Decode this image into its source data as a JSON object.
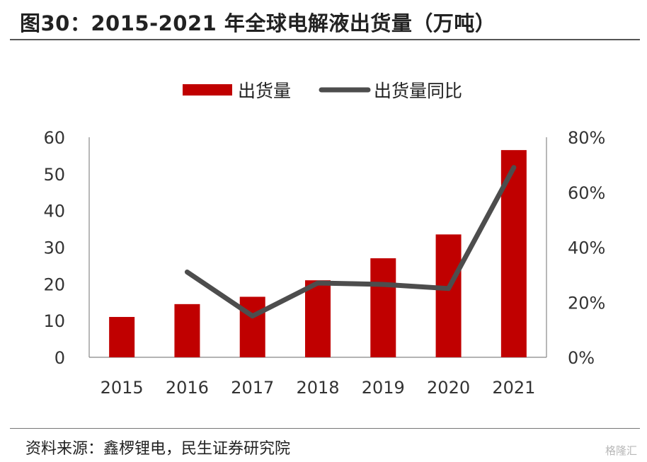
{
  "title": "图30：2015-2021 年全球电解液出货量（万吨）",
  "source": "资料来源：鑫椤锂电，民生证券研究院",
  "watermark": "格隆汇",
  "chart_data": {
    "type": "bar",
    "categories": [
      "2015",
      "2016",
      "2017",
      "2018",
      "2019",
      "2020",
      "2021"
    ],
    "series": [
      {
        "name": "出货量",
        "type": "bar",
        "axis": "left",
        "color": "#c00000",
        "values": [
          11,
          14.5,
          16.5,
          21,
          27,
          33.5,
          56.5
        ]
      },
      {
        "name": "出货量同比",
        "type": "line",
        "axis": "right",
        "color": "#4d4d4d",
        "values": [
          null,
          31,
          15,
          27,
          26.5,
          25,
          69
        ]
      }
    ],
    "y_left": {
      "min": 0,
      "max": 60,
      "ticks": [
        0,
        10,
        20,
        30,
        40,
        50,
        60
      ]
    },
    "y_right": {
      "min": 0,
      "max": 80,
      "ticks": [
        "0%",
        "20%",
        "40%",
        "60%",
        "80%"
      ]
    },
    "legend_position": "top-center",
    "grid": false
  }
}
